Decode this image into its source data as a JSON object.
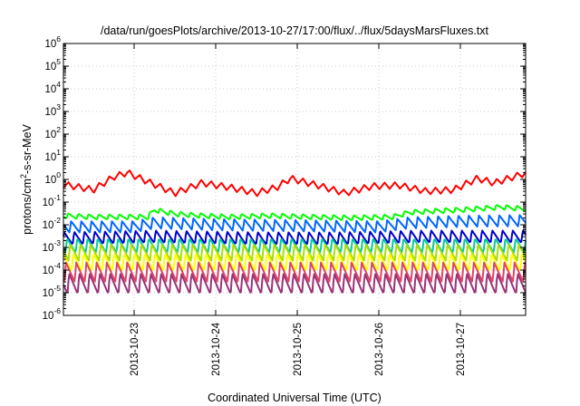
{
  "chart_data": {
    "type": "line",
    "title": "/data/run/goesPlots/archive/2013-10-27/17:00/flux/../flux/5daysMarsFluxes.txt",
    "xlabel": "Coordinated Universal Time (UTC)",
    "ylabel": {
      "prefix": "protons/cm",
      "sup": "2",
      "suffix": "-s-sr-MeV"
    },
    "y_scale": "log",
    "ylim": [
      1e-06,
      1000000.0
    ],
    "y_ticks": [
      {
        "value": 1e-06,
        "base": "10",
        "exp": "-6"
      },
      {
        "value": 1e-05,
        "base": "10",
        "exp": "-5"
      },
      {
        "value": 0.0001,
        "base": "10",
        "exp": "-4"
      },
      {
        "value": 0.001,
        "base": "10",
        "exp": "-3"
      },
      {
        "value": 0.01,
        "base": "10",
        "exp": "-2"
      },
      {
        "value": 0.1,
        "base": "10",
        "exp": "-1"
      },
      {
        "value": 1.0,
        "base": "10",
        "exp": "0"
      },
      {
        "value": 10.0,
        "base": "10",
        "exp": "1"
      },
      {
        "value": 100.0,
        "base": "10",
        "exp": "2"
      },
      {
        "value": 1000.0,
        "base": "10",
        "exp": "3"
      },
      {
        "value": 10000.0,
        "base": "10",
        "exp": "4"
      },
      {
        "value": 100000.0,
        "base": "10",
        "exp": "5"
      },
      {
        "value": 1000000.0,
        "base": "10",
        "exp": "6"
      }
    ],
    "xlim": [
      "2013-10-22 03:12",
      "2013-10-27 19:12"
    ],
    "x_ticks": [
      "2013-10-23",
      "2013-10-24",
      "2013-10-25",
      "2013-10-26",
      "2013-10-27"
    ],
    "grid": true,
    "sawtooth_period_hours": 3,
    "series": [
      {
        "color": "#ff0000",
        "x": [
          "2013-10-22 03:12",
          "2013-10-22 12:00",
          "2013-10-22 18:00",
          "2013-10-22 22:00",
          "2013-10-23 04:00",
          "2013-10-23 12:00",
          "2013-10-23 20:00",
          "2013-10-24 04:00",
          "2013-10-24 12:00",
          "2013-10-24 18:00",
          "2013-10-24 22:00",
          "2013-10-25 06:00",
          "2013-10-25 14:00",
          "2013-10-25 22:00",
          "2013-10-26 06:00",
          "2013-10-26 14:00",
          "2013-10-26 22:00",
          "2013-10-27 05:00",
          "2013-10-27 10:00",
          "2013-10-27 19:12"
        ],
        "values": [
          0.6,
          0.35,
          1.3,
          2.0,
          0.8,
          0.25,
          0.7,
          0.45,
          0.25,
          0.45,
          1.1,
          0.55,
          0.25,
          0.5,
          0.55,
          0.3,
          0.35,
          1.1,
          0.7,
          1.9
        ]
      },
      {
        "color": "#00ff00",
        "x": [
          "2013-10-22 03:12",
          "2013-10-22 12:00",
          "2013-10-23 04:00",
          "2013-10-23 06:00",
          "2013-10-23 12:00",
          "2013-10-23 20:00",
          "2013-10-24 04:00",
          "2013-10-24 16:00",
          "2013-10-25 04:00",
          "2013-10-25 16:00",
          "2013-10-26 04:00",
          "2013-10-26 09:00",
          "2013-10-26 16:00",
          "2013-10-27 00:00",
          "2013-10-27 12:00",
          "2013-10-27 19:12"
        ],
        "values": [
          0.025,
          0.022,
          0.022,
          0.045,
          0.03,
          0.025,
          0.022,
          0.025,
          0.022,
          0.02,
          0.022,
          0.035,
          0.04,
          0.045,
          0.06,
          0.05
        ]
      },
      {
        "color": "#0066ff",
        "x": [
          "2013-10-22 03:12",
          "2013-10-23 00:00",
          "2013-10-23 06:00",
          "2013-10-24 00:00",
          "2013-10-25 00:00",
          "2013-10-26 00:00",
          "2013-10-26 09:00",
          "2013-10-27 00:00",
          "2013-10-27 19:12"
        ],
        "values": [
          0.008,
          0.008,
          0.012,
          0.01,
          0.009,
          0.008,
          0.012,
          0.014,
          0.015
        ]
      },
      {
        "color": "#0000cc",
        "x": [
          "2013-10-22 03:12",
          "2013-10-23 06:00",
          "2013-10-24 12:00",
          "2013-10-25 12:00",
          "2013-10-26 12:00",
          "2013-10-27 19:12"
        ],
        "values": [
          0.0025,
          0.003,
          0.0025,
          0.0025,
          0.003,
          0.003
        ]
      },
      {
        "color": "#00cc99",
        "x": [
          "2013-10-22 03:12",
          "2013-10-27 19:12"
        ],
        "values": [
          0.0012,
          0.0012
        ]
      },
      {
        "color": "#aadd00",
        "x": [
          "2013-10-22 03:12",
          "2013-10-27 19:12"
        ],
        "values": [
          0.0006,
          0.0006
        ]
      },
      {
        "color": "#ffff00",
        "x": [
          "2013-10-22 03:12",
          "2013-10-27 19:12"
        ],
        "values": [
          0.00022,
          0.00022
        ]
      },
      {
        "color": "#dd4466",
        "x": [
          "2013-10-22 03:12",
          "2013-10-27 19:12"
        ],
        "values": [
          8e-05,
          8e-05
        ]
      },
      {
        "color": "#993377",
        "x": [
          "2013-10-22 03:12",
          "2013-10-27 19:12"
        ],
        "values": [
          2.5e-05,
          2.5e-05
        ]
      }
    ]
  }
}
